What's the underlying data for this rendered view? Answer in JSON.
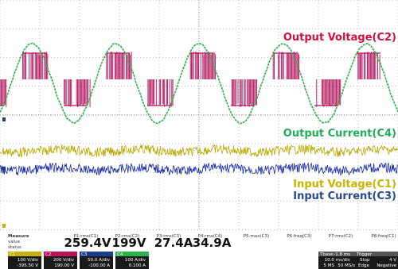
{
  "traces": [
    "Output Voltage(C2)",
    "Output Current(C4)",
    "Input Voltage(C1)",
    "Input Current(C3)"
  ],
  "measure": {
    "title": "Measure",
    "rows": [
      "value",
      "status"
    ],
    "params": [
      "P1:rms(C1)",
      "P2:rms(C2)",
      "P3:rms(C3)",
      "P4:rms(C4)",
      "P5:max(C3)",
      "P6:freq(C3)",
      "P7:rms(C2)",
      "P8:freq(C1)"
    ],
    "values": [
      "259.4V",
      "199V",
      "27.4A",
      "34.9A"
    ]
  },
  "channels": [
    {
      "name": "C1",
      "scale": "100 V/div",
      "offset": "-395.50 V"
    },
    {
      "name": "C2",
      "scale": "200 V/div",
      "offset": "190.00 V"
    },
    {
      "name": "C3",
      "scale": "50.0 A/div",
      "offset": "-100.00 A"
    },
    {
      "name": "C4",
      "scale": "100 A/div",
      "offset": "0.100 A"
    }
  ],
  "timebase": {
    "label": "Tbase",
    "delay": "-1.8 ms",
    "div": "10.0 ms/div",
    "samples": "5 MS",
    "rate": "50 MS/s",
    "trigger": "Trigger",
    "mode": "Stop",
    "level": "4 V",
    "type": "Edge",
    "slope": "Negative"
  }
}
